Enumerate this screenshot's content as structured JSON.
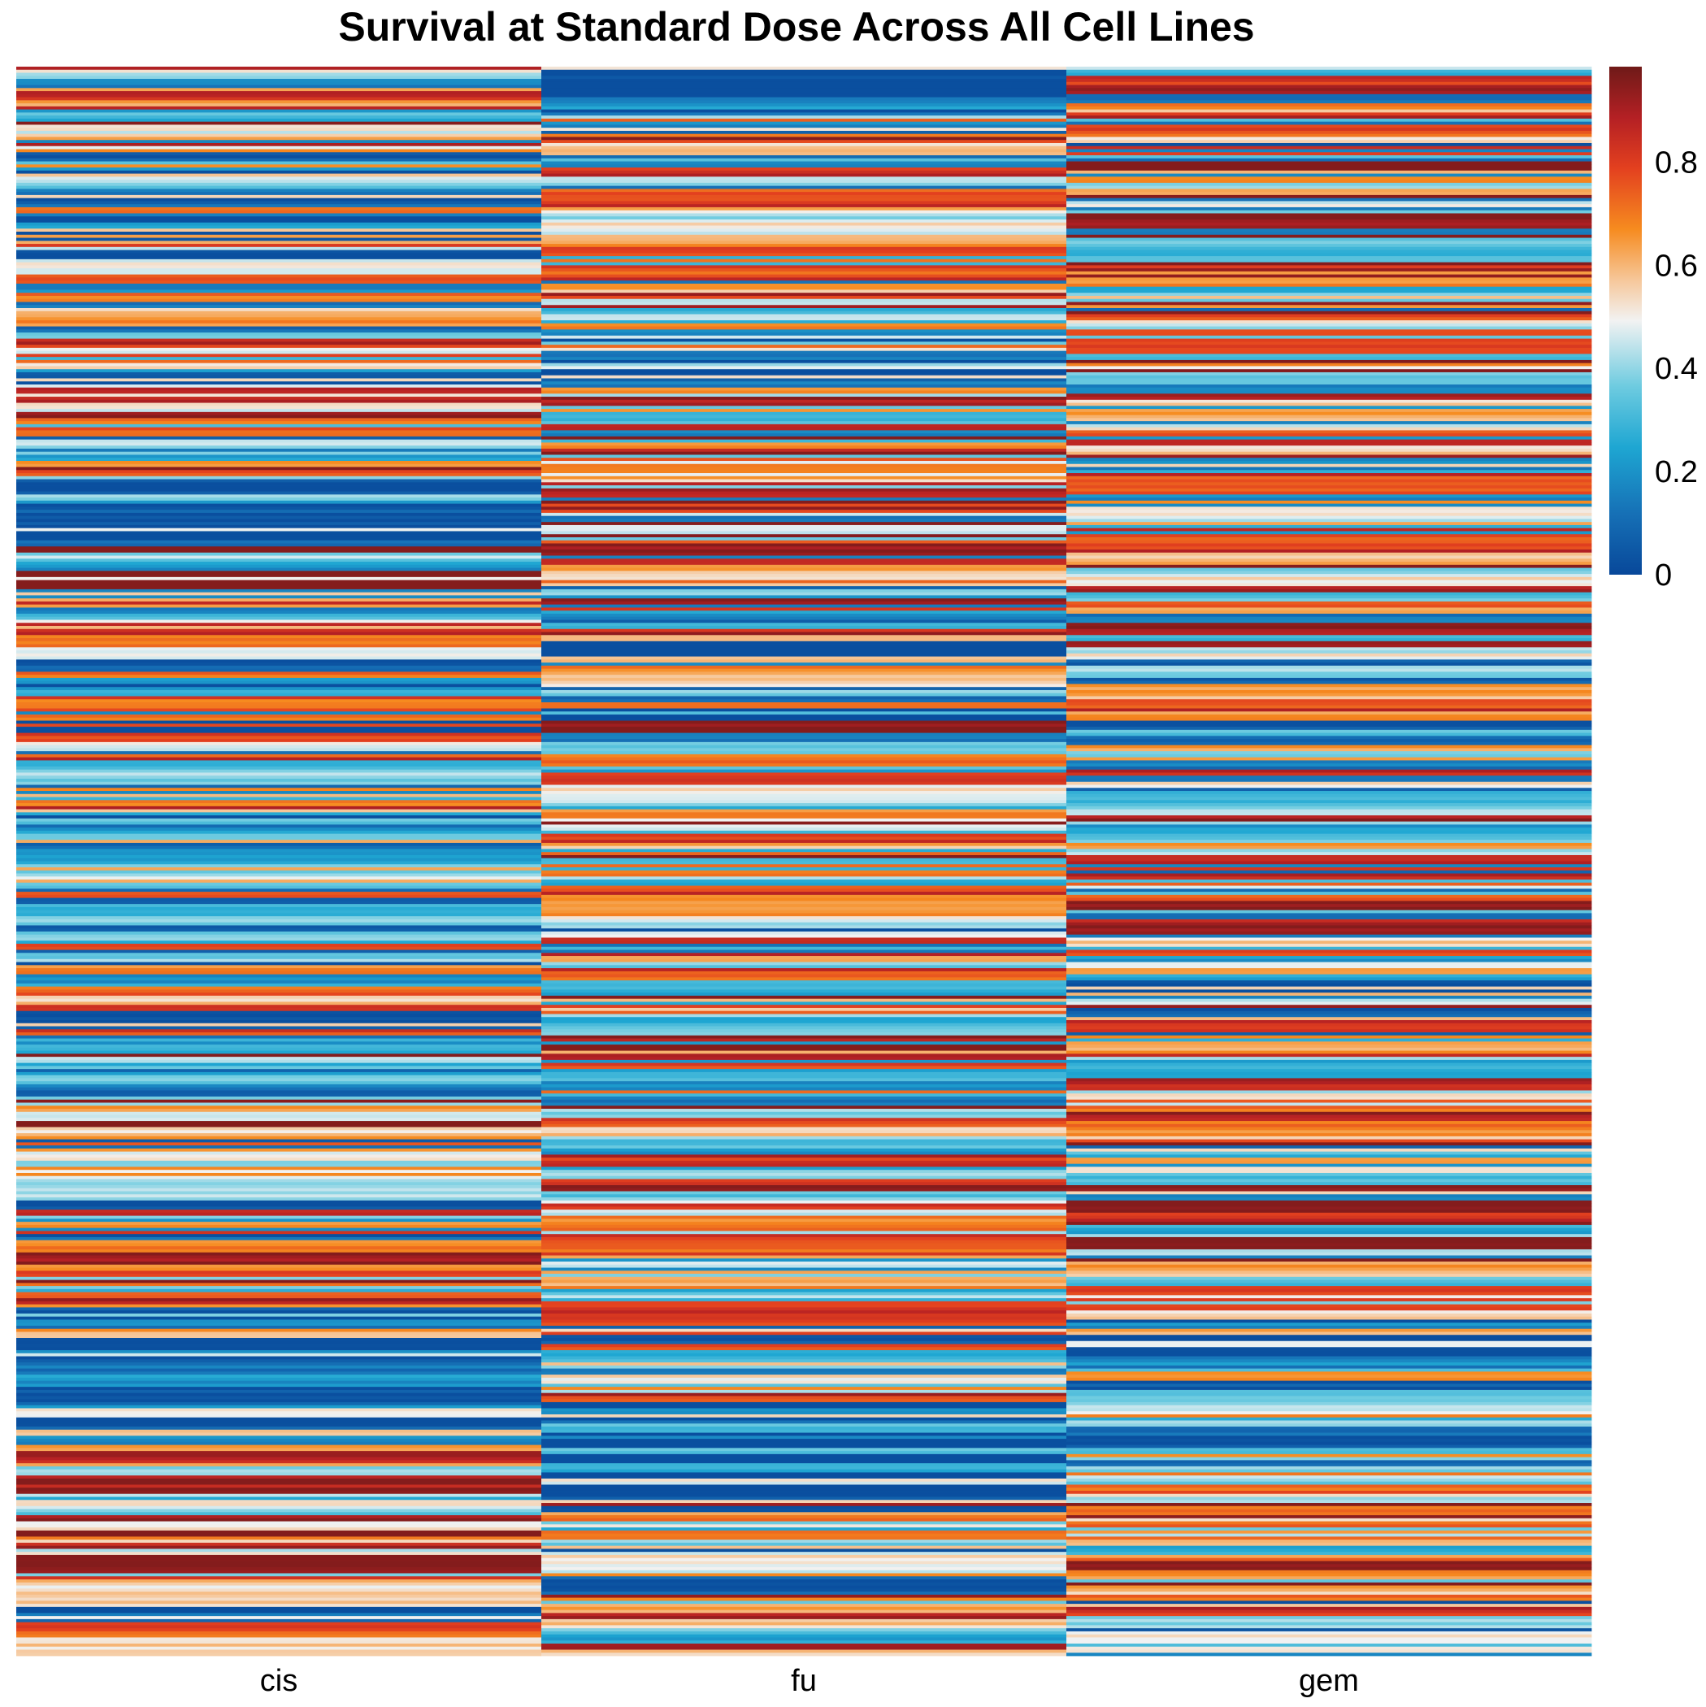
{
  "chart_data": {
    "type": "heatmap",
    "title": "Survival at Standard Dose Across All Cell Lines",
    "xlabel": "",
    "ylabel": "",
    "columns": [
      "cis",
      "fu",
      "gem"
    ],
    "n_rows": 520,
    "value_range": [
      0,
      1
    ],
    "colorbar": {
      "ticks": [
        0,
        0.2,
        0.4,
        0.6,
        0.8
      ],
      "tick_labels": [
        "0",
        "0.2",
        "0.4",
        "0.6",
        "0.8"
      ],
      "colormap_stops": [
        {
          "value": 0.0,
          "color": "#08489a"
        },
        {
          "value": 0.12,
          "color": "#1670b6"
        },
        {
          "value": 0.25,
          "color": "#1ea6d2"
        },
        {
          "value": 0.37,
          "color": "#6dcbe0"
        },
        {
          "value": 0.5,
          "color": "#f2f2f2"
        },
        {
          "value": 0.58,
          "color": "#f6c79a"
        },
        {
          "value": 0.68,
          "color": "#f68b1f"
        },
        {
          "value": 0.8,
          "color": "#e3401f"
        },
        {
          "value": 0.9,
          "color": "#b42024"
        },
        {
          "value": 1.0,
          "color": "#6f1a18"
        }
      ]
    },
    "column_profiles": {
      "cis": [
        {
          "from": 0.0,
          "to": 0.05,
          "mean": 0.5
        },
        {
          "from": 0.05,
          "to": 0.12,
          "mean": 0.42
        },
        {
          "from": 0.12,
          "to": 0.2,
          "mean": 0.38
        },
        {
          "from": 0.2,
          "to": 0.27,
          "mean": 0.55
        },
        {
          "from": 0.27,
          "to": 0.3,
          "mean": 0.15
        },
        {
          "from": 0.3,
          "to": 0.37,
          "mean": 0.62
        },
        {
          "from": 0.37,
          "to": 0.45,
          "mean": 0.42
        },
        {
          "from": 0.45,
          "to": 0.55,
          "mean": 0.45
        },
        {
          "from": 0.55,
          "to": 0.62,
          "mean": 0.4
        },
        {
          "from": 0.62,
          "to": 0.7,
          "mean": 0.55
        },
        {
          "from": 0.7,
          "to": 0.74,
          "mean": 0.4
        },
        {
          "from": 0.74,
          "to": 0.78,
          "mean": 0.7
        },
        {
          "from": 0.78,
          "to": 0.86,
          "mean": 0.25
        },
        {
          "from": 0.86,
          "to": 0.88,
          "mean": 0.45
        },
        {
          "from": 0.88,
          "to": 0.95,
          "mean": 0.75
        },
        {
          "from": 0.95,
          "to": 1.0,
          "mean": 0.35
        }
      ],
      "fu": [
        {
          "from": 0.0,
          "to": 0.03,
          "mean": 0.1
        },
        {
          "from": 0.03,
          "to": 0.1,
          "mean": 0.55
        },
        {
          "from": 0.1,
          "to": 0.17,
          "mean": 0.45
        },
        {
          "from": 0.17,
          "to": 0.2,
          "mean": 0.28
        },
        {
          "from": 0.2,
          "to": 0.3,
          "mean": 0.6
        },
        {
          "from": 0.3,
          "to": 0.36,
          "mean": 0.55
        },
        {
          "from": 0.36,
          "to": 0.41,
          "mean": 0.25
        },
        {
          "from": 0.41,
          "to": 0.46,
          "mean": 0.6
        },
        {
          "from": 0.46,
          "to": 0.52,
          "mean": 0.75
        },
        {
          "from": 0.52,
          "to": 0.58,
          "mean": 0.45
        },
        {
          "from": 0.58,
          "to": 0.68,
          "mean": 0.58
        },
        {
          "from": 0.68,
          "to": 0.75,
          "mean": 0.62
        },
        {
          "from": 0.75,
          "to": 0.8,
          "mean": 0.5
        },
        {
          "from": 0.8,
          "to": 0.84,
          "mean": 0.55
        },
        {
          "from": 0.84,
          "to": 0.87,
          "mean": 0.2
        },
        {
          "from": 0.87,
          "to": 0.9,
          "mean": 0.05
        },
        {
          "from": 0.9,
          "to": 1.0,
          "mean": 0.45
        }
      ],
      "gem": [
        {
          "from": 0.0,
          "to": 0.05,
          "mean": 0.45
        },
        {
          "from": 0.05,
          "to": 0.15,
          "mean": 0.55
        },
        {
          "from": 0.15,
          "to": 0.25,
          "mean": 0.6
        },
        {
          "from": 0.25,
          "to": 0.35,
          "mean": 0.58
        },
        {
          "from": 0.35,
          "to": 0.45,
          "mean": 0.5
        },
        {
          "from": 0.45,
          "to": 0.55,
          "mean": 0.55
        },
        {
          "from": 0.55,
          "to": 0.65,
          "mean": 0.48
        },
        {
          "from": 0.65,
          "to": 0.72,
          "mean": 0.58
        },
        {
          "from": 0.72,
          "to": 0.78,
          "mean": 0.65
        },
        {
          "from": 0.78,
          "to": 0.86,
          "mean": 0.35
        },
        {
          "from": 0.86,
          "to": 0.9,
          "mean": 0.3
        },
        {
          "from": 0.9,
          "to": 0.96,
          "mean": 0.72
        },
        {
          "from": 0.96,
          "to": 1.0,
          "mean": 0.5
        }
      ]
    }
  }
}
